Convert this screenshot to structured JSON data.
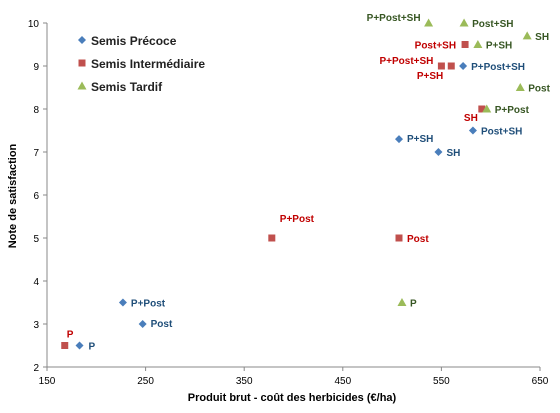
{
  "chart_data": {
    "type": "scatter",
    "xlabel": "Produit brut - coût des herbicides (€/ha)",
    "ylabel": "Note de satisfaction",
    "xlim": [
      150,
      650
    ],
    "ylim": [
      2,
      10
    ],
    "xticks": [
      150,
      250,
      350,
      450,
      550,
      650
    ],
    "yticks": [
      2,
      3,
      4,
      5,
      6,
      7,
      8,
      9,
      10
    ],
    "grid": false,
    "legend_position": "top-left",
    "series": [
      {
        "name": "Semis Précoce",
        "marker": "diamond",
        "color": "#4a7ebb",
        "label_color": "#1f4e79",
        "points": [
          {
            "x": 183,
            "y": 2.5,
            "label": "P"
          },
          {
            "x": 247,
            "y": 3.0,
            "label": "Post"
          },
          {
            "x": 227,
            "y": 3.5,
            "label": "P+Post"
          },
          {
            "x": 507,
            "y": 7.3,
            "label": "P+SH"
          },
          {
            "x": 547,
            "y": 7.0,
            "label": "SH"
          },
          {
            "x": 582,
            "y": 7.5,
            "label": "Post+SH"
          },
          {
            "x": 572,
            "y": 9.0,
            "label": "P+Post+SH"
          }
        ]
      },
      {
        "name": "Semis Intermédiaire",
        "marker": "square",
        "color": "#c0504d",
        "label_color": "#c00000",
        "points": [
          {
            "x": 168,
            "y": 2.5,
            "label": "P"
          },
          {
            "x": 378,
            "y": 5.0,
            "label": "P+Post"
          },
          {
            "x": 507,
            "y": 5.0,
            "label": "Post"
          },
          {
            "x": 591,
            "y": 8.0,
            "label": "SH"
          },
          {
            "x": 574,
            "y": 9.5,
            "label": "Post+SH"
          },
          {
            "x": 550,
            "y": 9.0,
            "label": "P+Post+SH"
          },
          {
            "x": 560,
            "y": 9.0,
            "label": "P+SH"
          }
        ]
      },
      {
        "name": "Semis Tardif",
        "marker": "triangle",
        "color": "#9bbb59",
        "label_color": "#375623",
        "points": [
          {
            "x": 510,
            "y": 3.5,
            "label": "P"
          },
          {
            "x": 596,
            "y": 8.0,
            "label": "P+Post"
          },
          {
            "x": 630,
            "y": 8.5,
            "label": "Post"
          },
          {
            "x": 587,
            "y": 9.5,
            "label": "P+SH"
          },
          {
            "x": 637,
            "y": 9.7,
            "label": "SH"
          },
          {
            "x": 573,
            "y": 10.0,
            "label": "Post+SH"
          },
          {
            "x": 537,
            "y": 10.0,
            "label": "P+Post+SH"
          }
        ]
      }
    ]
  }
}
